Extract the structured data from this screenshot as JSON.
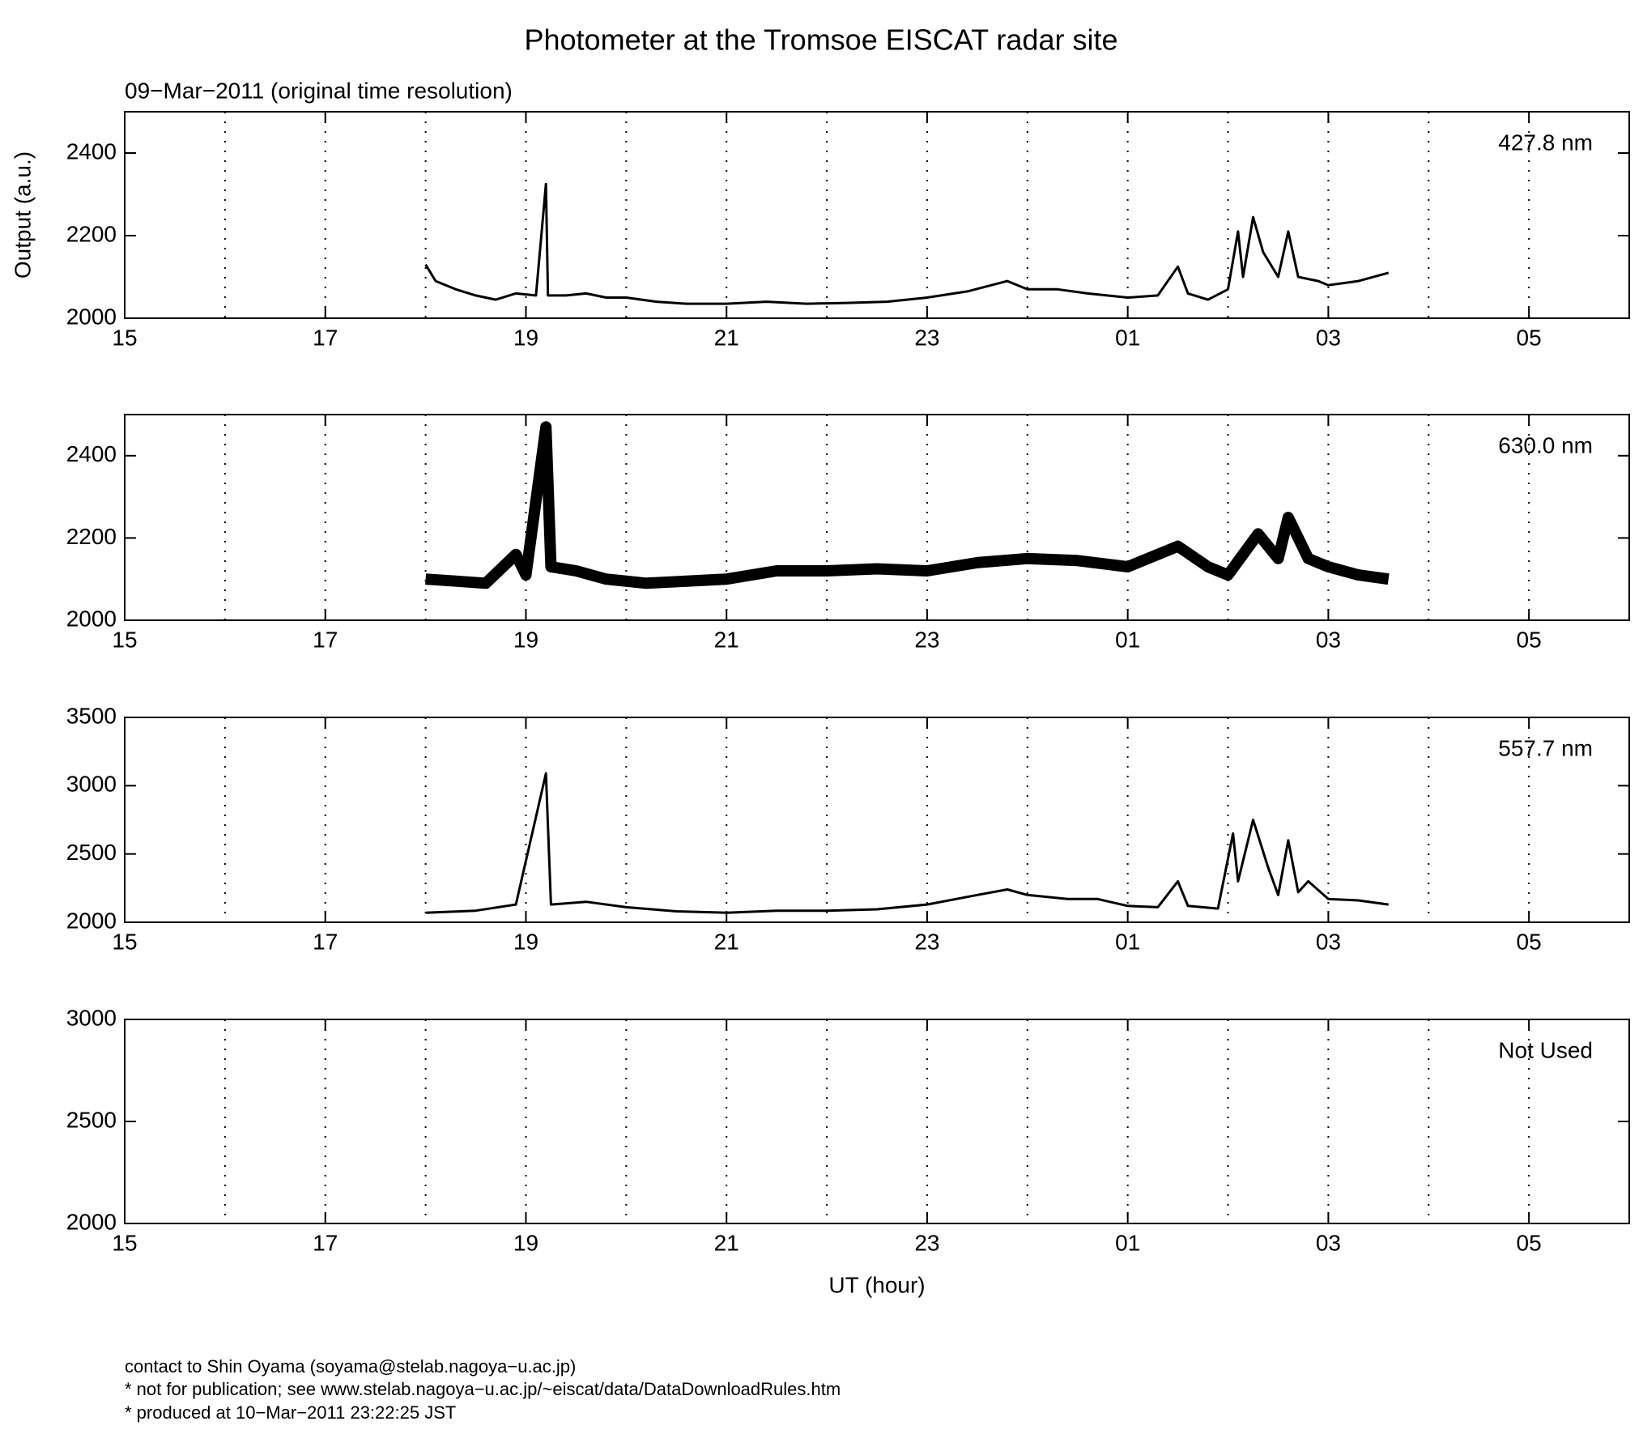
{
  "title": "Photometer at the Tromsoe EISCAT radar site",
  "subtitle": "09−Mar−2011 (original time resolution)",
  "xlabel": "UT (hour)",
  "footer": [
    "contact to Shin Oyama (soyama@stelab.nagoya−u.ac.jp)",
    "* not for publication; see www.stelab.nagoya−u.ac.jp/~eiscat/data/DataDownloadRules.htm",
    "* produced at 10−Mar−2011 23:22:25 JST"
  ],
  "chart_data": [
    {
      "type": "line",
      "label": "427.8 nm",
      "ylabel": "Output (a.u.)",
      "xlim": [
        15,
        30
      ],
      "ylim": [
        2000,
        2500
      ],
      "yticks": [
        2000,
        2200,
        2400
      ],
      "xticks": [
        15,
        17,
        19,
        21,
        23,
        {
          "value": 25,
          "label": "01"
        },
        {
          "value": 27,
          "label": "03"
        },
        {
          "value": 29,
          "label": "05"
        }
      ],
      "xgrid": [
        16,
        17,
        18,
        19,
        20,
        21,
        22,
        23,
        24,
        25,
        26,
        27,
        28,
        29
      ],
      "line_width": 3,
      "series": [
        {
          "color": "#000000",
          "x": [
            18.0,
            18.1,
            18.3,
            18.5,
            18.7,
            18.9,
            19.1,
            19.2,
            19.22,
            19.4,
            19.6,
            19.8,
            20.0,
            20.3,
            20.6,
            21.0,
            21.4,
            21.8,
            22.2,
            22.6,
            23.0,
            23.4,
            23.8,
            24.0,
            24.3,
            24.6,
            25.0,
            25.3,
            25.5,
            25.6,
            25.8,
            26.0,
            26.1,
            26.15,
            26.25,
            26.35,
            26.5,
            26.6,
            26.7,
            26.9,
            27.0,
            27.3,
            27.6
          ],
          "values": [
            2130,
            2090,
            2070,
            2055,
            2045,
            2060,
            2055,
            2325,
            2055,
            2055,
            2060,
            2050,
            2050,
            2040,
            2035,
            2035,
            2040,
            2035,
            2037,
            2040,
            2050,
            2065,
            2090,
            2070,
            2070,
            2060,
            2050,
            2055,
            2125,
            2060,
            2045,
            2070,
            2210,
            2100,
            2245,
            2160,
            2100,
            2210,
            2100,
            2090,
            2080,
            2090,
            2110
          ]
        }
      ]
    },
    {
      "type": "line",
      "label": "630.0 nm",
      "xlim": [
        15,
        30
      ],
      "ylim": [
        2000,
        2500
      ],
      "yticks": [
        2000,
        2200,
        2400
      ],
      "xticks": [
        15,
        17,
        19,
        21,
        23,
        {
          "value": 25,
          "label": "01"
        },
        {
          "value": 27,
          "label": "03"
        },
        {
          "value": 29,
          "label": "05"
        }
      ],
      "xgrid": [
        16,
        17,
        18,
        19,
        20,
        21,
        22,
        23,
        24,
        25,
        26,
        27,
        28,
        29
      ],
      "line_width": 14,
      "series": [
        {
          "color": "#000000",
          "x": [
            18.0,
            18.3,
            18.6,
            18.9,
            19.0,
            19.2,
            19.25,
            19.5,
            19.8,
            20.2,
            20.6,
            21.0,
            21.5,
            22.0,
            22.5,
            23.0,
            23.5,
            24.0,
            24.5,
            25.0,
            25.5,
            25.8,
            26.0,
            26.3,
            26.5,
            26.6,
            26.8,
            27.0,
            27.3,
            27.6
          ],
          "values": [
            2100,
            2095,
            2090,
            2160,
            2110,
            2470,
            2130,
            2120,
            2100,
            2090,
            2095,
            2100,
            2120,
            2120,
            2125,
            2120,
            2140,
            2150,
            2145,
            2130,
            2180,
            2130,
            2110,
            2210,
            2150,
            2250,
            2150,
            2130,
            2110,
            2100
          ]
        }
      ]
    },
    {
      "type": "line",
      "label": "557.7 nm",
      "xlim": [
        15,
        30
      ],
      "ylim": [
        2000,
        3500
      ],
      "yticks": [
        2000,
        2500,
        3000,
        3500
      ],
      "xticks": [
        15,
        17,
        19,
        21,
        23,
        {
          "value": 25,
          "label": "01"
        },
        {
          "value": 27,
          "label": "03"
        },
        {
          "value": 29,
          "label": "05"
        }
      ],
      "xgrid": [
        16,
        17,
        18,
        19,
        20,
        21,
        22,
        23,
        24,
        25,
        26,
        27,
        28,
        29
      ],
      "line_width": 3,
      "series": [
        {
          "color": "#000000",
          "x": [
            18.0,
            18.5,
            18.9,
            19.2,
            19.25,
            19.6,
            20.0,
            20.5,
            21.0,
            21.5,
            22.0,
            22.5,
            23.0,
            23.5,
            23.8,
            24.0,
            24.4,
            24.7,
            25.0,
            25.3,
            25.5,
            25.6,
            25.9,
            26.05,
            26.1,
            26.25,
            26.4,
            26.5,
            26.6,
            26.7,
            26.8,
            27.0,
            27.3,
            27.6
          ],
          "values": [
            2070,
            2085,
            2130,
            3090,
            2130,
            2150,
            2110,
            2080,
            2070,
            2085,
            2085,
            2095,
            2130,
            2200,
            2240,
            2200,
            2170,
            2170,
            2120,
            2110,
            2300,
            2120,
            2100,
            2650,
            2300,
            2750,
            2400,
            2200,
            2600,
            2220,
            2300,
            2170,
            2160,
            2130
          ]
        }
      ]
    },
    {
      "type": "line",
      "label": "Not Used",
      "xlim": [
        15,
        30
      ],
      "ylim": [
        2000,
        3000
      ],
      "yticks": [
        2000,
        2500,
        3000
      ],
      "xticks": [
        15,
        17,
        19,
        21,
        23,
        {
          "value": 25,
          "label": "01"
        },
        {
          "value": 27,
          "label": "03"
        },
        {
          "value": 29,
          "label": "05"
        }
      ],
      "xgrid": [
        16,
        17,
        18,
        19,
        20,
        21,
        22,
        23,
        24,
        25,
        26,
        27,
        28,
        29
      ],
      "line_width": 3,
      "series": []
    }
  ]
}
